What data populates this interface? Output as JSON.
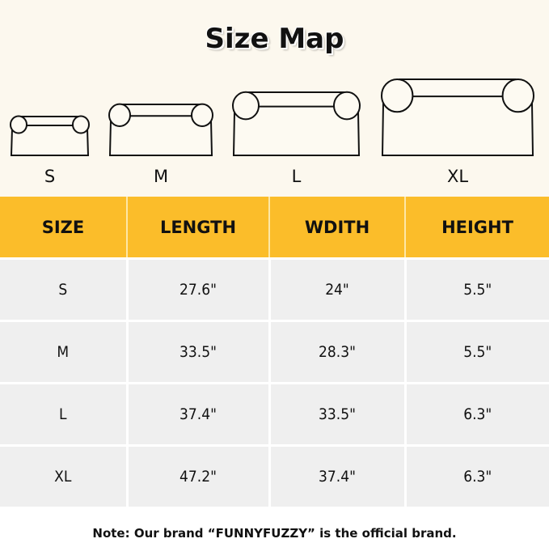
{
  "title": "Size Map",
  "sofas": [
    "S",
    "M",
    "L",
    "XL"
  ],
  "table": {
    "headers": [
      "SIZE",
      "LENGTH",
      "WDITH",
      "HEIGHT"
    ],
    "rows": [
      [
        "S",
        "27.6\"",
        "24\"",
        "5.5\""
      ],
      [
        "M",
        "33.5\"",
        "28.3\"",
        "5.5\""
      ],
      [
        "L",
        "37.4\"",
        "33.5\"",
        "6.3\""
      ],
      [
        "XL",
        "47.2\"",
        "37.4\"",
        "6.3\""
      ]
    ]
  },
  "note": "Note: Our brand “FUNNYFUZZY” is the official brand.",
  "colors": {
    "header": "#fbbd2a",
    "background": "#fcf8ee",
    "row": "#efefef"
  }
}
